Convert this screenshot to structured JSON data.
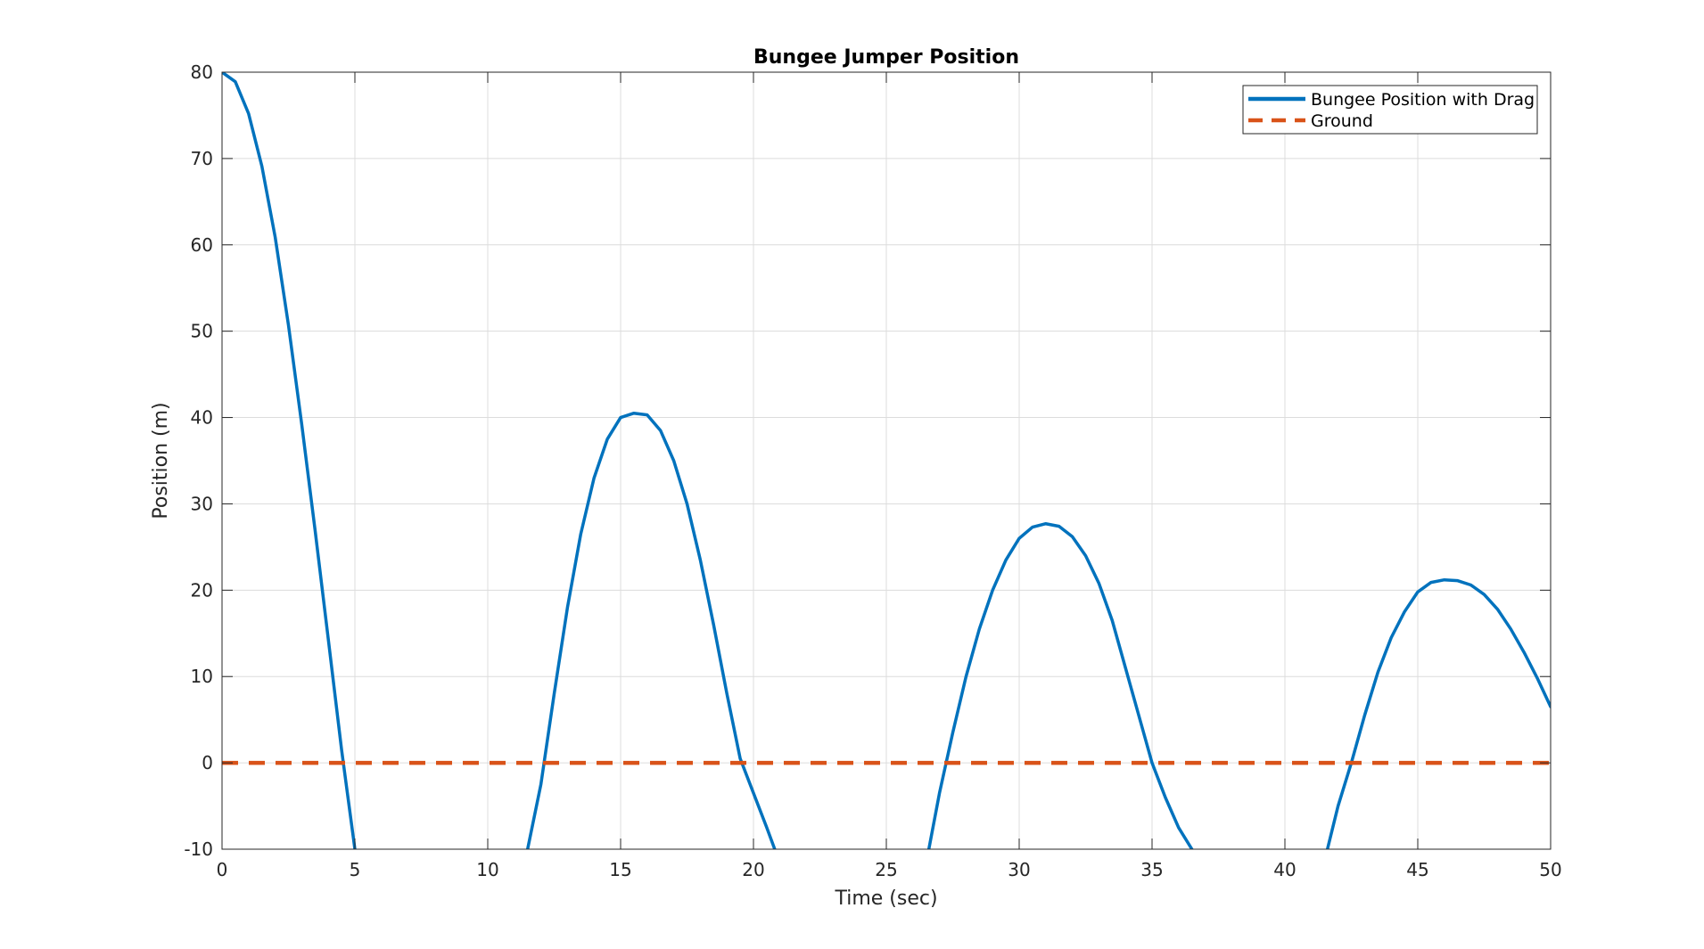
{
  "chart_data": {
    "type": "line",
    "title": "Bungee Jumper Position",
    "xlabel": "Time (sec)",
    "ylabel": "Position (m)",
    "xlim": [
      0,
      50
    ],
    "ylim": [
      -10,
      80
    ],
    "xticks": [
      0,
      5,
      10,
      15,
      20,
      25,
      30,
      35,
      40,
      45,
      50
    ],
    "yticks": [
      -10,
      0,
      10,
      20,
      30,
      40,
      50,
      60,
      70,
      80
    ],
    "grid": true,
    "legend_position": "top-right",
    "series": [
      {
        "name": "Bungee Position with Drag",
        "style": "solid",
        "color": "#0072BD",
        "x": [
          0,
          0.5,
          1,
          1.5,
          2,
          2.5,
          3,
          3.5,
          4,
          4.5,
          5,
          11.5,
          12,
          12.5,
          13,
          13.5,
          14,
          14.5,
          15,
          15.5,
          16,
          16.5,
          17,
          17.5,
          18,
          18.5,
          19,
          19.5,
          20,
          20.5,
          20.8,
          26.6,
          27,
          27.5,
          28,
          28.5,
          29,
          29.5,
          30,
          30.5,
          31,
          31.5,
          32,
          32.5,
          33,
          33.5,
          34,
          34.5,
          35,
          35.5,
          36,
          36.5,
          41.6,
          42,
          42.5,
          43,
          43.5,
          44,
          44.5,
          45,
          45.5,
          46,
          46.5,
          47,
          47.5,
          48,
          48.5,
          49,
          49.5,
          50
        ],
        "y": [
          80,
          78.9,
          75.2,
          69.1,
          60.9,
          50.7,
          39.2,
          27.0,
          14.3,
          1.5,
          -10,
          -10,
          -2.5,
          8.0,
          18.0,
          26.5,
          33.0,
          37.5,
          40.0,
          40.5,
          40.3,
          38.5,
          35.0,
          30.0,
          23.5,
          16.0,
          8.0,
          0.5,
          -3.5,
          -7.5,
          -10,
          -10,
          -3.5,
          3.5,
          10.0,
          15.5,
          20.0,
          23.5,
          26.0,
          27.3,
          27.7,
          27.4,
          26.2,
          24.0,
          20.8,
          16.5,
          11.0,
          5.5,
          0.0,
          -4.0,
          -7.5,
          -10,
          -10,
          -5.0,
          0.0,
          5.5,
          10.5,
          14.5,
          17.5,
          19.8,
          20.9,
          21.2,
          21.1,
          20.6,
          19.5,
          17.8,
          15.5,
          12.8,
          9.8,
          6.5
        ]
      },
      {
        "name": "Ground",
        "style": "dashed",
        "color": "#D95319",
        "x": [
          0,
          50
        ],
        "y": [
          0,
          0
        ]
      }
    ]
  }
}
